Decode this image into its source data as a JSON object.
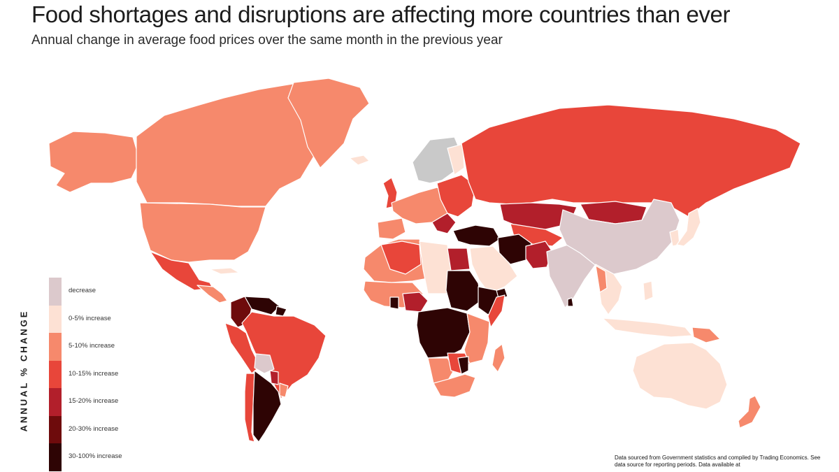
{
  "header": {
    "title": "Food shortages and disruptions are affecting more countries than ever",
    "subtitle": "Annual change in average food prices over the same month in the previous year"
  },
  "legend": {
    "axis_title": "ANNUAL % CHANGE",
    "items": [
      {
        "label": "decrease",
        "color": "#dcc9cc"
      },
      {
        "label": "0-5% increase",
        "color": "#fde1d4"
      },
      {
        "label": "5-10% increase",
        "color": "#f6896c"
      },
      {
        "label": "10-15% increase",
        "color": "#e8463a"
      },
      {
        "label": "15-20% increase",
        "color": "#b21f2b"
      },
      {
        "label": "20-30% increase",
        "color": "#6e0b0c"
      },
      {
        "label": "30-100% increase",
        "color": "#2e0404"
      }
    ]
  },
  "source_note": "Data sourced from Government statistics and compiled by Trading Economics. See data source for reporting periods. Data available at",
  "colors": {
    "no_data": "#c9c9c9",
    "background": "#ffffff"
  }
}
